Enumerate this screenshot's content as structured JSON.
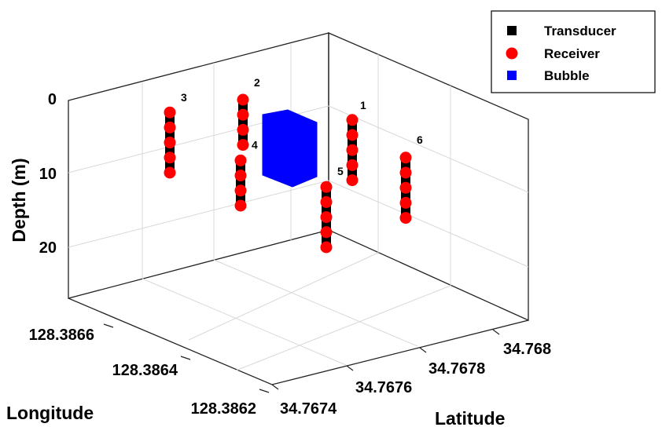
{
  "chart_data": {
    "type": "scatter",
    "projection": "3d",
    "xlabel": "Longitude",
    "ylabel": "Latitude",
    "zlabel": "Depth (m)",
    "x_ticks": [
      "128.3862",
      "128.3864",
      "128.3866"
    ],
    "y_ticks": [
      "34.7674",
      "34.7676",
      "34.7678",
      "34.768"
    ],
    "z_ticks": [
      "0",
      "10",
      "20"
    ],
    "z_reversed": true,
    "grid": true,
    "legend": {
      "position": "top-right",
      "entries": [
        {
          "name": "Transducer",
          "marker": "square",
          "color": "#000000"
        },
        {
          "name": "Receiver",
          "marker": "circle",
          "color": "#ff0000"
        },
        {
          "name": "Bubble",
          "marker": "square",
          "color": "#0000ff"
        }
      ]
    },
    "strings": [
      {
        "label": "1",
        "receivers": [
          3,
          5,
          7,
          9,
          11
        ],
        "transducers": [
          4,
          6,
          8,
          10
        ]
      },
      {
        "label": "2",
        "receivers": [
          0,
          2,
          4,
          6
        ],
        "transducers": [
          1,
          3,
          5
        ]
      },
      {
        "label": "3",
        "receivers": [
          2,
          4,
          6,
          8,
          10
        ],
        "transducers": [
          3,
          5,
          7,
          9
        ]
      },
      {
        "label": "4",
        "receivers": [
          9,
          11,
          13,
          15
        ],
        "transducers": [
          10,
          12,
          14
        ]
      },
      {
        "label": "5",
        "receivers": [
          12,
          14,
          16,
          18,
          20
        ],
        "transducers": [
          13,
          15,
          17,
          19
        ]
      },
      {
        "label": "6",
        "receivers": [
          8,
          10,
          12,
          14,
          16
        ],
        "transducers": [
          9,
          11,
          13,
          15
        ]
      }
    ],
    "bubble": {
      "depth_range": [
        2,
        12
      ]
    }
  }
}
